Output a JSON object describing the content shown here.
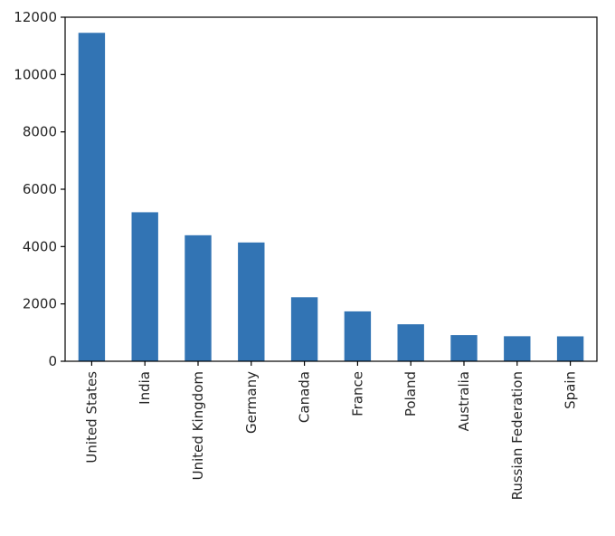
{
  "chart_data": {
    "type": "bar",
    "title": "",
    "xlabel": "",
    "ylabel": "",
    "categories": [
      "United States",
      "India",
      "United Kingdom",
      "Germany",
      "Canada",
      "France",
      "Poland",
      "Australia",
      "Russian Federation",
      "Spain"
    ],
    "values": [
      11455,
      5197,
      4395,
      4143,
      2233,
      1740,
      1290,
      913,
      873,
      869
    ],
    "ylim": [
      0,
      12000
    ],
    "yticks": [
      0,
      2000,
      4000,
      6000,
      8000,
      10000,
      12000
    ],
    "ytick_labels": [
      "0",
      "2000",
      "4000",
      "6000",
      "8000",
      "10000",
      "12000"
    ],
    "bar_color": "#3274b4",
    "grid": false,
    "legend": "none"
  }
}
